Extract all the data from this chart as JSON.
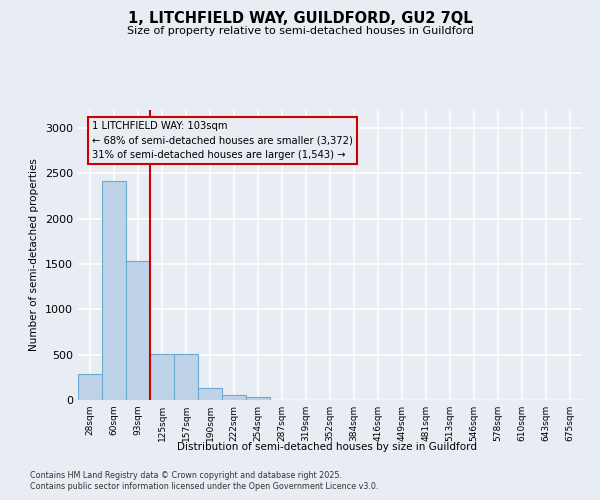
{
  "title": "1, LITCHFIELD WAY, GUILDFORD, GU2 7QL",
  "subtitle": "Size of property relative to semi-detached houses in Guildford",
  "xlabel": "Distribution of semi-detached houses by size in Guildford",
  "ylabel": "Number of semi-detached properties",
  "bins": [
    "28sqm",
    "60sqm",
    "93sqm",
    "125sqm",
    "157sqm",
    "190sqm",
    "222sqm",
    "254sqm",
    "287sqm",
    "319sqm",
    "352sqm",
    "384sqm",
    "416sqm",
    "449sqm",
    "481sqm",
    "513sqm",
    "546sqm",
    "578sqm",
    "610sqm",
    "643sqm",
    "675sqm"
  ],
  "values": [
    290,
    2420,
    1530,
    510,
    510,
    130,
    60,
    30,
    0,
    0,
    0,
    0,
    0,
    0,
    0,
    0,
    0,
    0,
    0,
    0,
    0
  ],
  "bar_color": "#bed3e8",
  "bar_edge_color": "#6aaad4",
  "vline_color": "#cc0000",
  "vline_x": 2.5,
  "annotation_text": "1 LITCHFIELD WAY: 103sqm\n← 68% of semi-detached houses are smaller (3,372)\n31% of semi-detached houses are larger (1,543) →",
  "ylim": [
    0,
    3200
  ],
  "yticks": [
    0,
    500,
    1000,
    1500,
    2000,
    2500,
    3000
  ],
  "background_color": "#e8edf3",
  "grid_color": "#ffffff",
  "footer1": "Contains HM Land Registry data © Crown copyright and database right 2025.",
  "footer2": "Contains public sector information licensed under the Open Government Licence v3.0."
}
